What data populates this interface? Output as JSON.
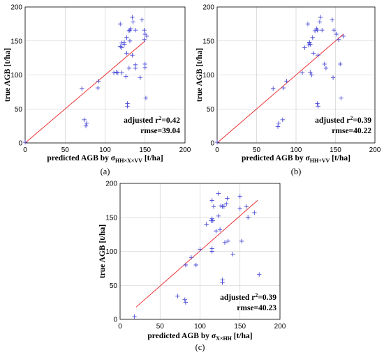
{
  "chart_data": [
    {
      "type": "scatter",
      "panel_label": "(a)",
      "xlabel_main": "predicted AGB by σ",
      "xlabel_sub": "HH×X×VV",
      "xlabel_tail": " [t/ha]",
      "ylabel": "true AGB [t/ha]",
      "xlim": [
        0,
        200
      ],
      "ylim": [
        0,
        200
      ],
      "xticks": [
        "0",
        "50",
        "100",
        "150",
        "200"
      ],
      "yticks": [
        "0",
        "50",
        "100",
        "150",
        "200"
      ],
      "grid": true,
      "stat_line1": "adjusted r",
      "stat_sup": "2",
      "stat_value": "=0.42",
      "stat_line2": "rmse=39.04",
      "fit_line": [
        [
          0,
          0
        ],
        [
          150,
          150
        ]
      ],
      "points": [
        [
          119,
          175
        ],
        [
          124,
          148
        ],
        [
          119,
          142
        ],
        [
          121,
          147
        ],
        [
          127,
          155
        ],
        [
          130,
          165
        ],
        [
          131,
          166
        ],
        [
          132,
          168
        ],
        [
          134,
          185
        ],
        [
          135,
          178
        ],
        [
          138,
          166
        ],
        [
          146,
          181
        ],
        [
          149,
          166
        ],
        [
          150,
          160
        ],
        [
          152,
          157
        ],
        [
          149,
          152
        ],
        [
          121,
          140
        ],
        [
          124,
          145
        ],
        [
          127,
          132
        ],
        [
          134,
          129
        ],
        [
          130,
          110
        ],
        [
          131,
          150
        ],
        [
          138,
          115
        ],
        [
          138,
          110
        ],
        [
          114,
          104
        ],
        [
          121,
          103
        ],
        [
          126,
          98
        ],
        [
          111,
          103
        ],
        [
          116,
          103
        ],
        [
          144,
          96
        ],
        [
          150,
          116
        ],
        [
          150,
          111
        ],
        [
          92,
          91
        ],
        [
          91,
          81
        ],
        [
          71,
          80
        ],
        [
          151,
          66
        ],
        [
          128,
          58
        ],
        [
          128,
          54
        ],
        [
          74,
          34
        ],
        [
          77,
          29
        ],
        [
          76,
          25
        ],
        [
          0,
          1
        ]
      ]
    },
    {
      "type": "scatter",
      "panel_label": "(b)",
      "xlabel_main": "predicted AGB by σ",
      "xlabel_sub": "HH+VV",
      "xlabel_tail": " [t/ha]",
      "ylabel": "true AGB [t/ha]",
      "xlim": [
        0,
        200
      ],
      "ylim": [
        0,
        200
      ],
      "xticks": [
        "0",
        "50",
        "100",
        "150",
        "200"
      ],
      "yticks": [
        "0",
        "50",
        "100",
        "150",
        "200"
      ],
      "grid": true,
      "stat_line1": "adjusted r",
      "stat_sup": "2",
      "stat_value": "=0.39",
      "stat_line2": "rmse=40.22",
      "fit_line": [
        [
          0,
          0
        ],
        [
          160,
          160
        ]
      ],
      "points": [
        [
          115,
          175
        ],
        [
          117,
          148
        ],
        [
          116,
          144
        ],
        [
          117,
          147
        ],
        [
          121,
          155
        ],
        [
          124,
          165
        ],
        [
          127,
          166
        ],
        [
          126,
          168
        ],
        [
          131,
          185
        ],
        [
          130,
          178
        ],
        [
          133,
          166
        ],
        [
          146,
          181
        ],
        [
          148,
          166
        ],
        [
          151,
          160
        ],
        [
          160,
          157
        ],
        [
          154,
          152
        ],
        [
          111,
          140
        ],
        [
          118,
          145
        ],
        [
          122,
          132
        ],
        [
          128,
          129
        ],
        [
          138,
          110
        ],
        [
          136,
          116
        ],
        [
          118,
          104
        ],
        [
          120,
          100
        ],
        [
          108,
          103
        ],
        [
          147,
          96
        ],
        [
          156,
          116
        ],
        [
          157,
          66
        ],
        [
          88,
          91
        ],
        [
          84,
          81
        ],
        [
          71,
          80
        ],
        [
          77,
          24
        ],
        [
          83,
          34
        ],
        [
          78,
          29
        ],
        [
          127,
          58
        ],
        [
          128,
          54
        ],
        [
          0,
          1
        ]
      ]
    },
    {
      "type": "scatter",
      "panel_label": "(c)",
      "xlabel_main": "predicted AGB by σ",
      "xlabel_sub": "X×HH",
      "xlabel_tail": " [t/ha]",
      "ylabel": "true AGB [t/ha]",
      "xlim": [
        0,
        200
      ],
      "ylim": [
        0,
        200
      ],
      "xticks": [
        "0",
        "50",
        "100",
        "150",
        "200"
      ],
      "yticks": [
        "0",
        "50",
        "100",
        "150",
        "200"
      ],
      "grid": true,
      "stat_line1": "adjusted r",
      "stat_sup": "2",
      "stat_value": "=0.39",
      "stat_line2": "rmse=40.23",
      "fit_line": [
        [
          20,
          18
        ],
        [
          172,
          175
        ]
      ],
      "points": [
        [
          123,
          185
        ],
        [
          115,
          175
        ],
        [
          134,
          178
        ],
        [
          150,
          181
        ],
        [
          117,
          166
        ],
        [
          126,
          167
        ],
        [
          128,
          166
        ],
        [
          133,
          170
        ],
        [
          130,
          166
        ],
        [
          158,
          166
        ],
        [
          168,
          157
        ],
        [
          150,
          163
        ],
        [
          115,
          148
        ],
        [
          116,
          145
        ],
        [
          123,
          152
        ],
        [
          114,
          145
        ],
        [
          120,
          130
        ],
        [
          108,
          140
        ],
        [
          125,
          132
        ],
        [
          160,
          150
        ],
        [
          115,
          104
        ],
        [
          115,
          100
        ],
        [
          100,
          103
        ],
        [
          135,
          115
        ],
        [
          131,
          113
        ],
        [
          141,
          96
        ],
        [
          152,
          115
        ],
        [
          174,
          66
        ],
        [
          95,
          80
        ],
        [
          89,
          91
        ],
        [
          82,
          80
        ],
        [
          72,
          34
        ],
        [
          81,
          29
        ],
        [
          82,
          25
        ],
        [
          128,
          58
        ],
        [
          128,
          54
        ],
        [
          18,
          4
        ]
      ]
    }
  ]
}
